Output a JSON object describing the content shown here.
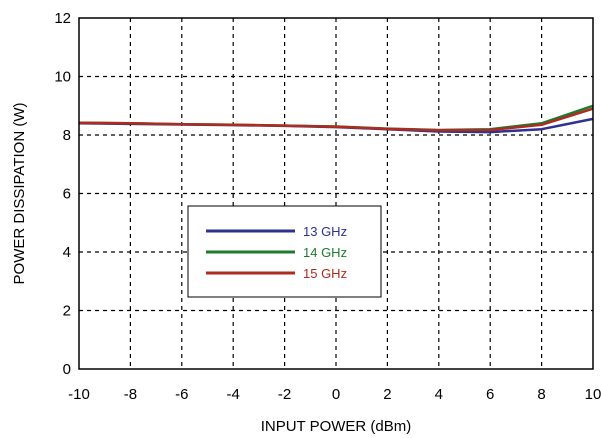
{
  "chart_data": {
    "type": "line",
    "title": "",
    "xlabel": "INPUT POWER (dBm)",
    "ylabel": "POWER DISSIPATION (W)",
    "xlim": [
      -10,
      10
    ],
    "ylim": [
      0,
      12
    ],
    "xticks": [
      -10,
      -8,
      -6,
      -4,
      -2,
      0,
      2,
      4,
      6,
      8,
      10
    ],
    "yticks": [
      0,
      2,
      4,
      6,
      8,
      10,
      12
    ],
    "x": [
      -10,
      -8,
      -6,
      -4,
      -2,
      0,
      2,
      4,
      6,
      8,
      10
    ],
    "grid": true,
    "legend_placement": "center-left",
    "series": [
      {
        "name": "13 GHz",
        "color": "#2e3092",
        "values": [
          8.4,
          8.38,
          8.36,
          8.34,
          8.31,
          8.27,
          8.2,
          8.12,
          8.1,
          8.2,
          8.55
        ]
      },
      {
        "name": "14 GHz",
        "color": "#1d7a2e",
        "values": [
          8.42,
          8.4,
          8.37,
          8.35,
          8.32,
          8.29,
          8.22,
          8.17,
          8.2,
          8.4,
          9.0
        ]
      },
      {
        "name": "15 GHz",
        "color": "#b02a1f",
        "values": [
          8.42,
          8.4,
          8.37,
          8.35,
          8.32,
          8.28,
          8.21,
          8.16,
          8.17,
          8.35,
          8.9
        ]
      }
    ]
  }
}
